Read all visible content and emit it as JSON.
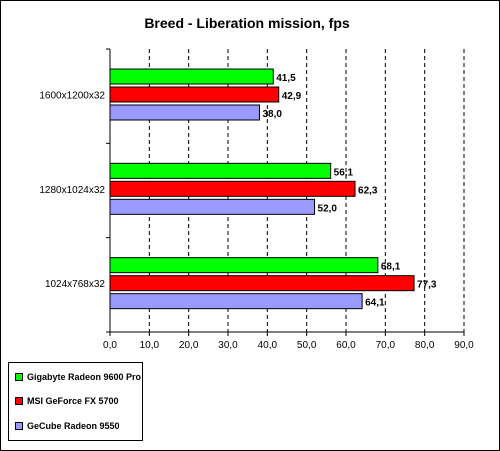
{
  "chart_data": {
    "type": "bar",
    "orientation": "horizontal",
    "title": "Breed - Liberation mission, fps",
    "categories": [
      "1600x1200x32",
      "1280x1024x32",
      "1024x768x32"
    ],
    "series": [
      {
        "name": "Gigabyte Radeon 9600 Pro",
        "color": "#00ff00",
        "values": [
          41.5,
          56.1,
          68.1
        ],
        "labels": [
          "41,5",
          "56,1",
          "68,1"
        ]
      },
      {
        "name": "MSI GeForce FX 5700",
        "color": "#ff0000",
        "values": [
          42.9,
          62.3,
          77.3
        ],
        "labels": [
          "42,9",
          "62,3",
          "77,3"
        ]
      },
      {
        "name": "GeCube Radeon 9550",
        "color": "#9999ff",
        "values": [
          38.0,
          52.0,
          64.1
        ],
        "labels": [
          "38,0",
          "52,0",
          "64,1"
        ]
      }
    ],
    "xlim": [
      0,
      90
    ],
    "xticks": [
      "0,0",
      "10,0",
      "20,0",
      "30,0",
      "40,0",
      "50,0",
      "60,0",
      "70,0",
      "80,0",
      "90,0"
    ],
    "grid": "vertical dashed",
    "legend_position": "bottom-left"
  }
}
